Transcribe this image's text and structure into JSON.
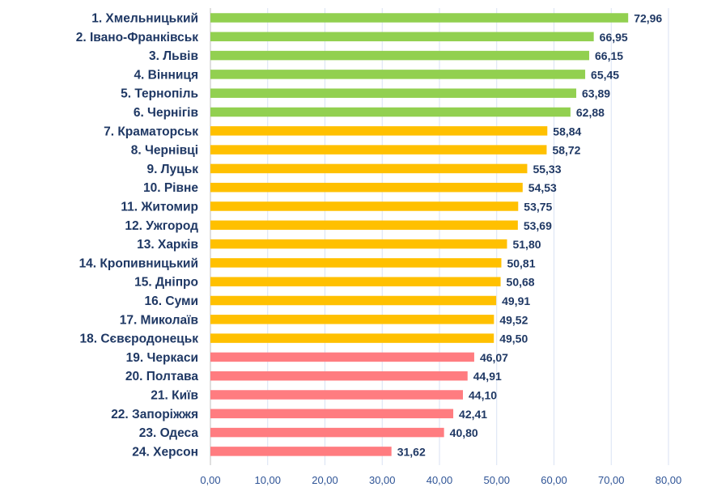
{
  "chart_data": {
    "type": "bar",
    "orientation": "horizontal",
    "categories": [
      "1. Хмельницький",
      "2. Івано-Франківськ",
      "3. Львів",
      "4. Вінниця",
      "5. Тернопіль",
      "6. Чернігів",
      "7. Краматорськ",
      "8. Чернівці",
      "9. Луцьк",
      "10. Рівне",
      "11. Житомир",
      "12. Ужгород",
      "13. Харків",
      "14. Кропивницький",
      "15. Дніпро",
      "16. Суми",
      "17. Миколаїв",
      "18. Сєвєродонецьк",
      "19. Черкаси",
      "20. Полтава",
      "21. Київ",
      "22. Запоріжжя",
      "23. Одеса",
      "24. Херсон"
    ],
    "values": [
      72.96,
      66.95,
      66.15,
      65.45,
      63.89,
      62.88,
      58.84,
      58.72,
      55.33,
      54.53,
      53.75,
      53.69,
      51.8,
      50.81,
      50.68,
      49.91,
      49.52,
      49.5,
      46.07,
      44.91,
      44.1,
      42.41,
      40.8,
      31.62
    ],
    "value_labels": [
      "72,96",
      "66,95",
      "66,15",
      "65,45",
      "63,89",
      "62,88",
      "58,84",
      "58,72",
      "55,33",
      "54,53",
      "53,75",
      "53,69",
      "51,80",
      "50,81",
      "50,68",
      "49,91",
      "49,52",
      "49,50",
      "46,07",
      "44,91",
      "44,10",
      "42,41",
      "40,80",
      "31,62"
    ],
    "bar_colors": [
      "#92d050",
      "#92d050",
      "#92d050",
      "#92d050",
      "#92d050",
      "#92d050",
      "#ffc000",
      "#ffc000",
      "#ffc000",
      "#ffc000",
      "#ffc000",
      "#ffc000",
      "#ffc000",
      "#ffc000",
      "#ffc000",
      "#ffc000",
      "#ffc000",
      "#ffc000",
      "#ff7c80",
      "#ff7c80",
      "#ff7c80",
      "#ff7c80",
      "#ff7c80",
      "#ff7c80"
    ],
    "xlim": [
      0,
      80
    ],
    "x_ticks": [
      0,
      10,
      20,
      30,
      40,
      50,
      60,
      70,
      80
    ],
    "x_tick_labels": [
      "0,00",
      "10,00",
      "20,00",
      "30,00",
      "40,00",
      "50,00",
      "60,00",
      "70,00",
      "80,00"
    ],
    "title": "",
    "xlabel": "",
    "ylabel": "",
    "grid": "vertical",
    "legend": "none"
  }
}
